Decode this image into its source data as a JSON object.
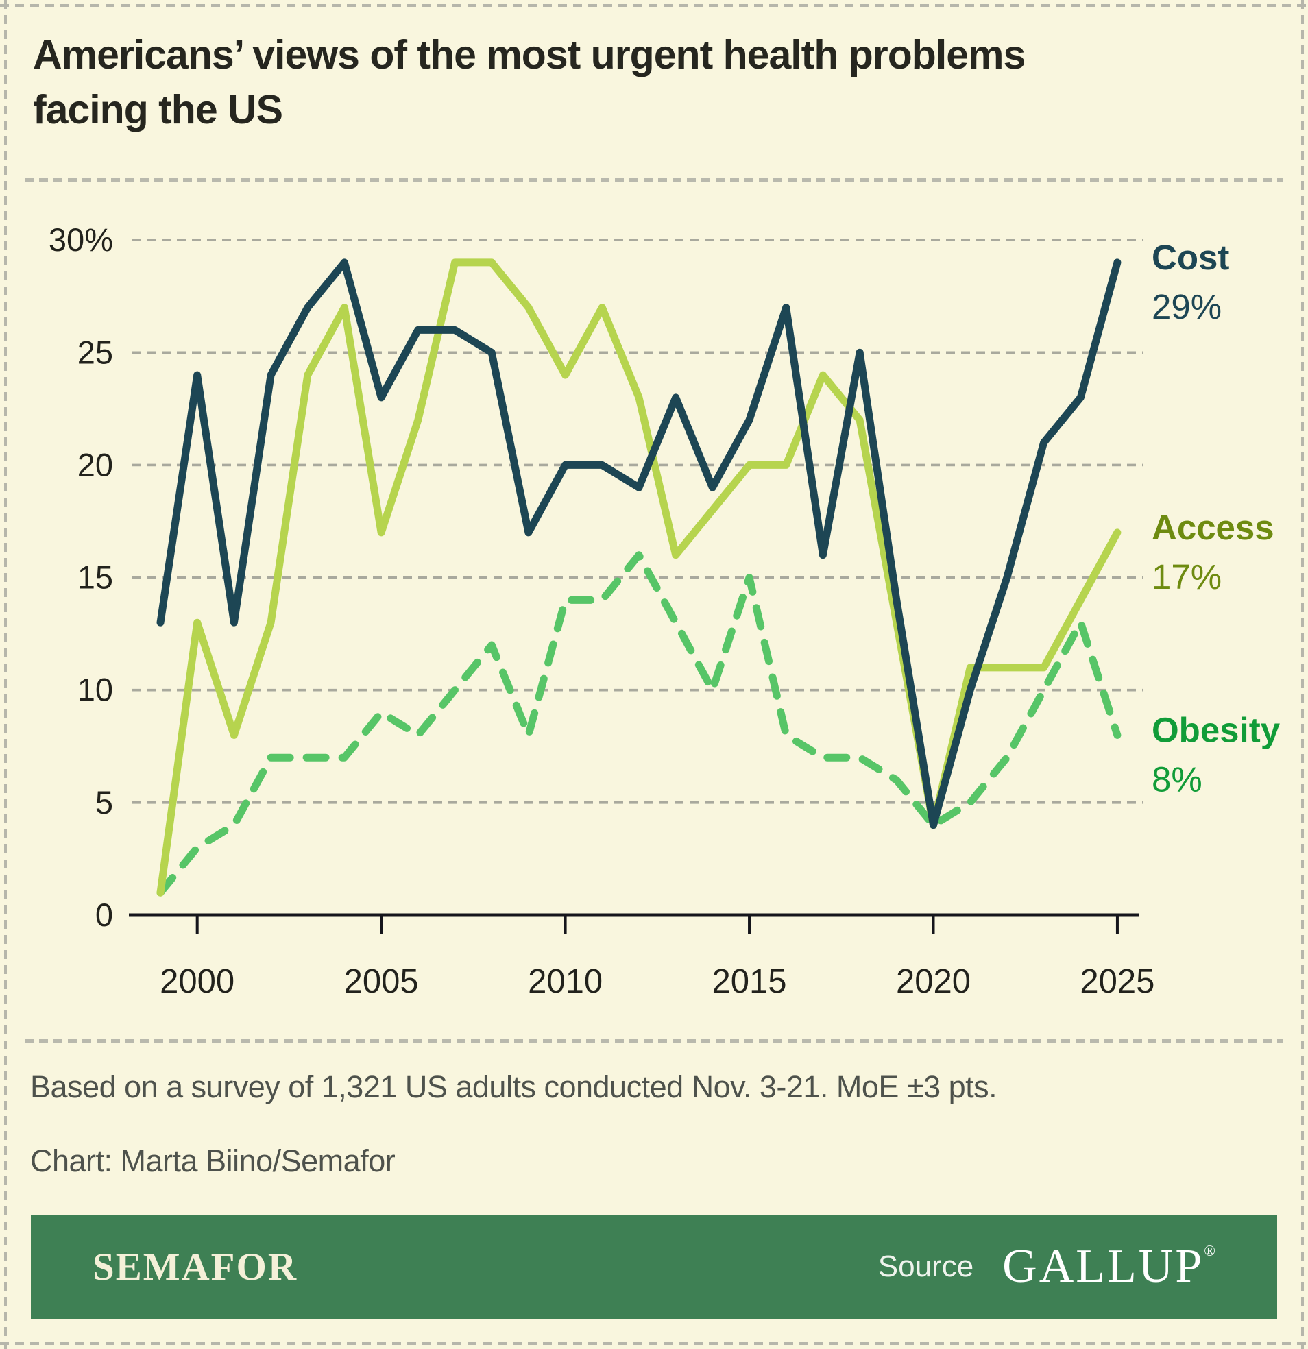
{
  "title": "Americans’ views of the most urgent health problems facing the US",
  "chart_data": {
    "type": "line",
    "x": [
      1999,
      2000,
      2001,
      2002,
      2003,
      2004,
      2005,
      2006,
      2007,
      2008,
      2009,
      2010,
      2011,
      2012,
      2013,
      2014,
      2015,
      2016,
      2017,
      2018,
      2019,
      2020,
      2021,
      2022,
      2023,
      2024,
      2025
    ],
    "series": [
      {
        "name": "Obesity",
        "style": "dashed",
        "line_color": "#57c567",
        "label_color": "#119c38",
        "end_label": "8%",
        "values": [
          1,
          3,
          4,
          7,
          7,
          7,
          9,
          8,
          10,
          12,
          8,
          14,
          14,
          16,
          13,
          10,
          15,
          8,
          7,
          7,
          6,
          4,
          5,
          7,
          10,
          13,
          8
        ]
      },
      {
        "name": "Access",
        "style": "solid",
        "line_color": "#b6d44e",
        "label_color": "#6e8b10",
        "end_label": "17%",
        "values": [
          1,
          13,
          8,
          13,
          24,
          27,
          17,
          22,
          29,
          29,
          27,
          24,
          27,
          23,
          16,
          18,
          20,
          20,
          24,
          22,
          13,
          4,
          11,
          11,
          11,
          14,
          17
        ]
      },
      {
        "name": "Cost",
        "style": "solid",
        "line_color": "#1d4654",
        "label_color": "#1d4654",
        "end_label": "29%",
        "values": [
          13,
          24,
          13,
          24,
          27,
          29,
          23,
          26,
          26,
          25,
          17,
          20,
          20,
          19,
          23,
          19,
          22,
          27,
          16,
          25,
          14,
          4,
          10,
          15,
          21,
          23,
          29
        ]
      }
    ],
    "ylim": [
      0,
      30
    ],
    "yticks": [
      {
        "v": 30,
        "label": "30%"
      },
      {
        "v": 25,
        "label": "25"
      },
      {
        "v": 20,
        "label": "20"
      },
      {
        "v": 15,
        "label": "15"
      },
      {
        "v": 10,
        "label": "10"
      },
      {
        "v": 5,
        "label": "5"
      },
      {
        "v": 0,
        "label": "0"
      }
    ],
    "xticks": [
      {
        "v": 2000,
        "label": "2000"
      },
      {
        "v": 2005,
        "label": "2005"
      },
      {
        "v": 2010,
        "label": "2010"
      },
      {
        "v": 2015,
        "label": "2015"
      },
      {
        "v": 2020,
        "label": "2020"
      },
      {
        "v": 2025,
        "label": "2025"
      }
    ],
    "grid": "horizontal-dashed",
    "legend_position": "right-of-line-ends",
    "colors": {
      "grid": "#a9a99d",
      "axis": "#15151b",
      "tick_text": "#22221c"
    }
  },
  "footer": {
    "note": "Based on a survey of 1,321 US adults conducted Nov. 3-21. MoE ±3 pts.",
    "credit": "Chart: Marta Biino/Semafor"
  },
  "banner": {
    "brand": "SEMAFOR",
    "source_label": "Source",
    "source_name": "GALLUP",
    "registered_mark": "®",
    "background": "#3e8054"
  }
}
